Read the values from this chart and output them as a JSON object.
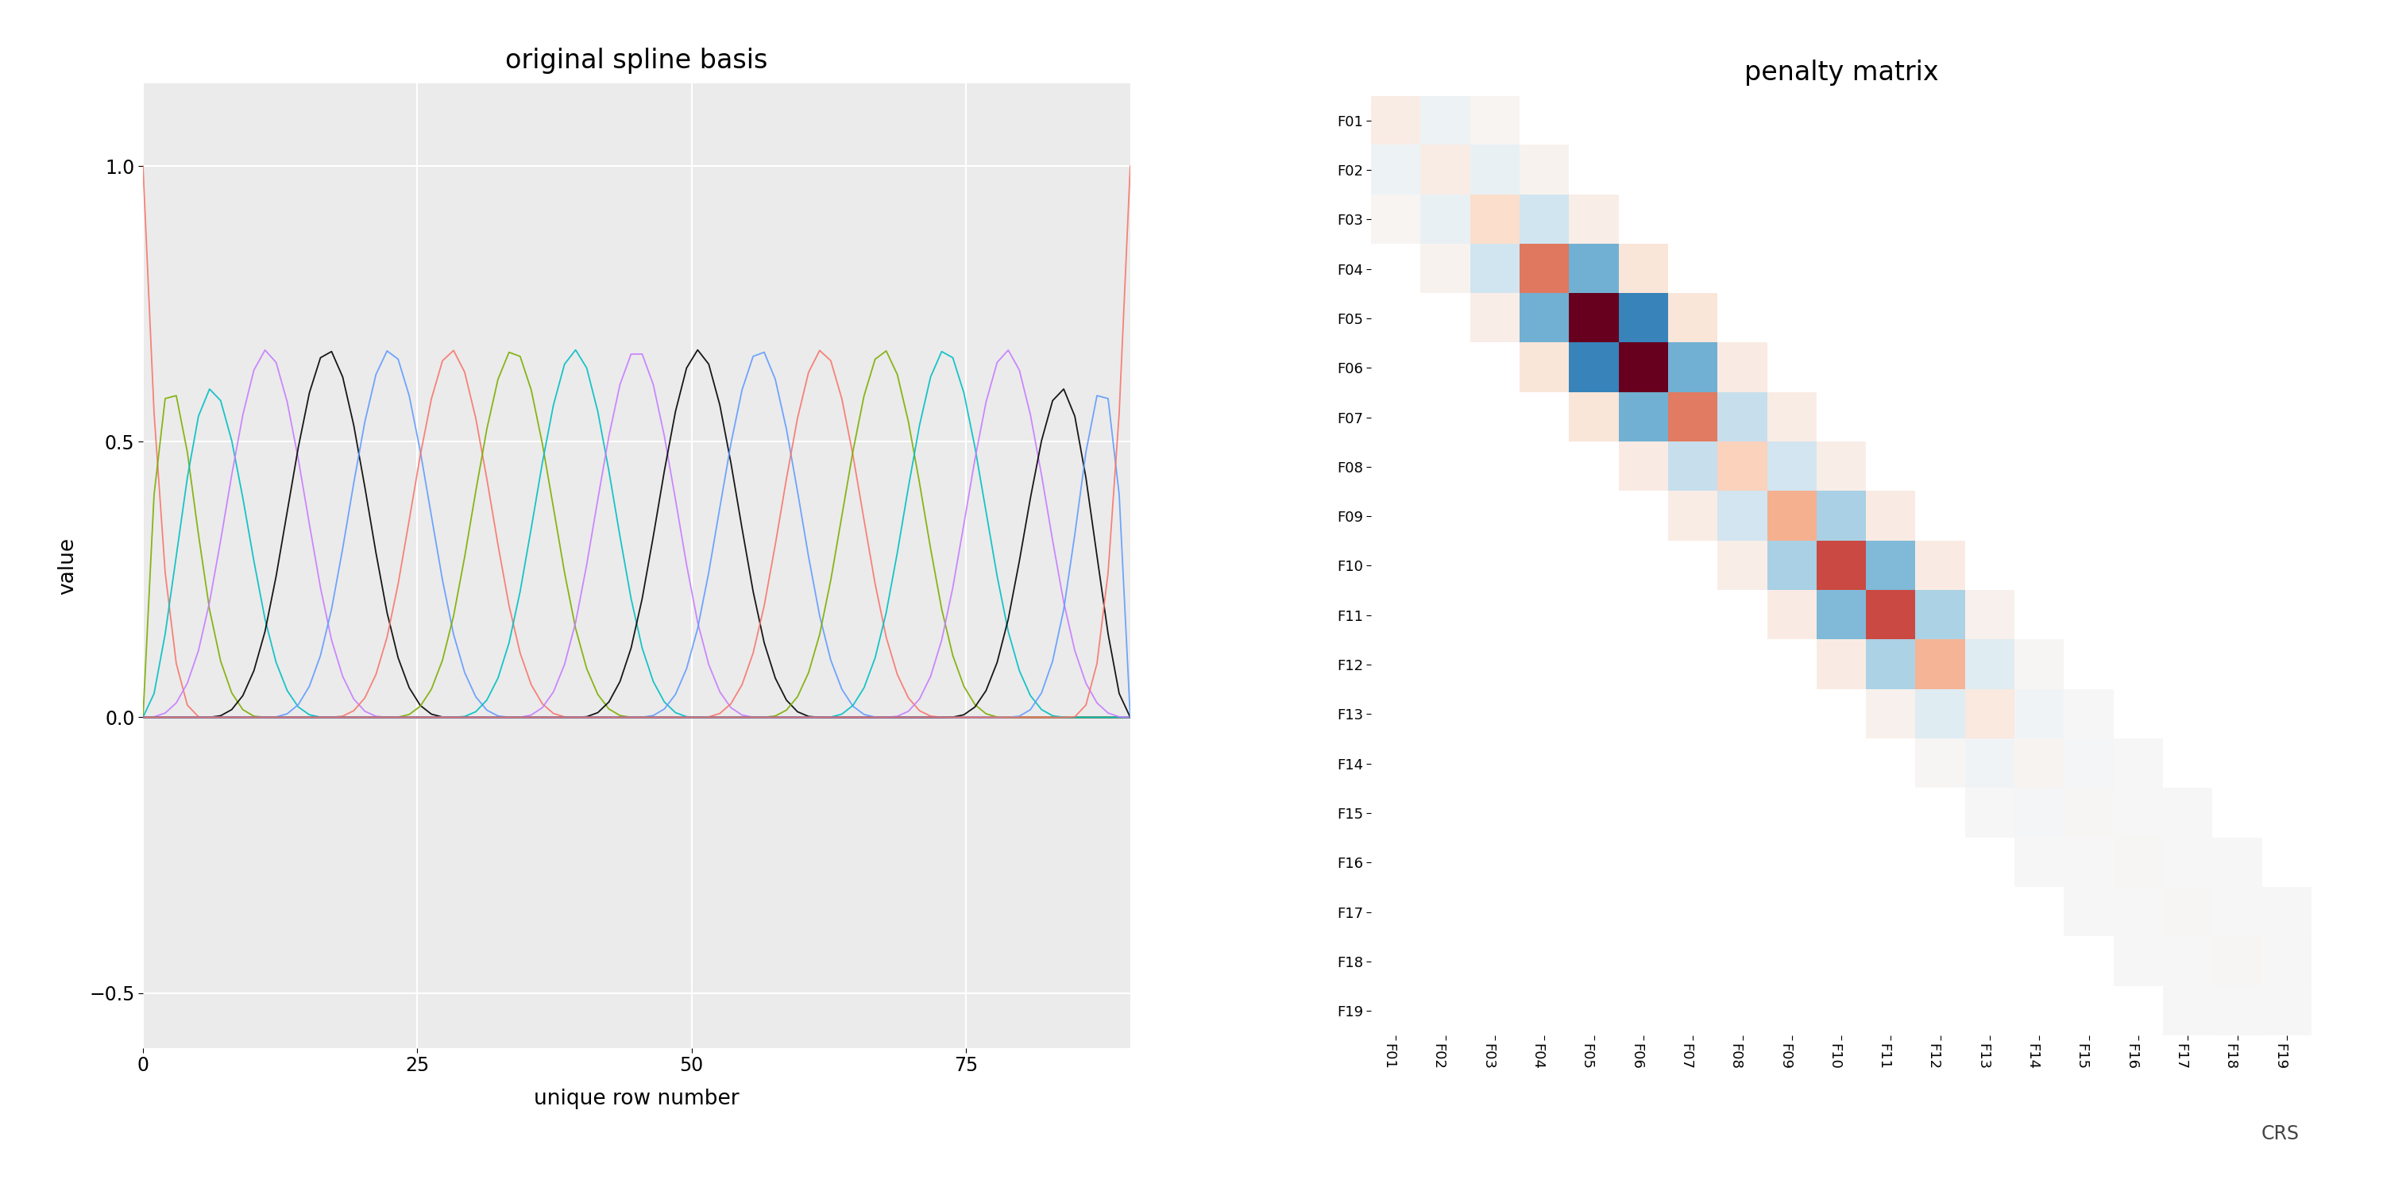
{
  "left_title": "original spline basis",
  "left_xlabel": "unique row number",
  "left_ylabel": "value",
  "left_xlim": [
    0,
    90
  ],
  "left_ylim": [
    -0.6,
    1.15
  ],
  "left_xticks": [
    0,
    25,
    50,
    75
  ],
  "left_yticks": [
    -0.5,
    0.0,
    0.5,
    1.0
  ],
  "right_title": "penalty matrix",
  "right_labels": [
    "F01",
    "F02",
    "F03",
    "F04",
    "F05",
    "F06",
    "F07",
    "F08",
    "F09",
    "F10",
    "F11",
    "F12",
    "F13",
    "F14",
    "F15",
    "F16",
    "F17",
    "F18",
    "F19"
  ],
  "crs_label": "CRS",
  "bg_color": "#EBEBEB",
  "grid_color": "#FFFFFF",
  "line_colors": [
    "#F8766D",
    "#7CAE00",
    "#00BFC4",
    "#C77CFF",
    "#000000",
    "#619CFF"
  ]
}
